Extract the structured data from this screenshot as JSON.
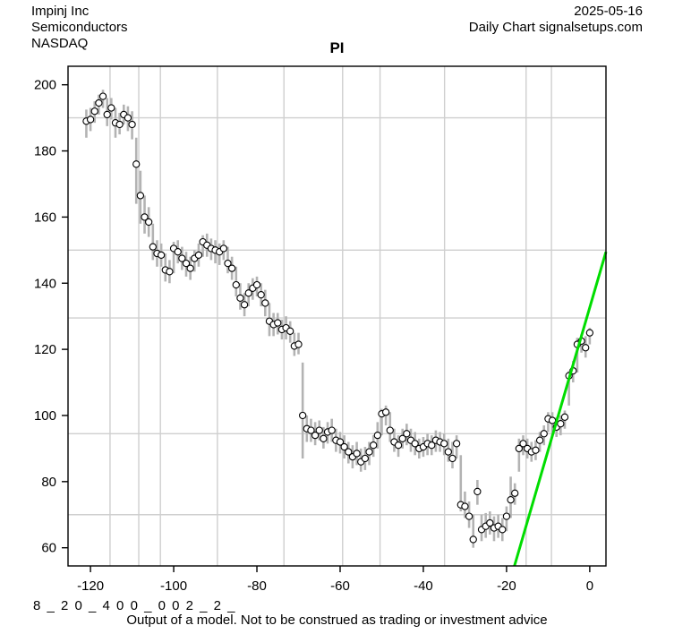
{
  "header": {
    "company": "Impinj Inc",
    "sector": "Semiconductors",
    "exchange": "NASDAQ",
    "date": "2025-05-16",
    "source": "Daily Chart signalsetups.com"
  },
  "footer": {
    "annotation": "8 _ 2 0 _ 4 0 0 _ 0 0 2 _ 2 _",
    "disclaimer": "Output of a model. Not to be construed as trading or investment advice"
  },
  "chart_data": {
    "type": "scatter",
    "title": "PI",
    "xlabel": "",
    "ylabel": "",
    "x_ticks": [
      -120,
      -100,
      -80,
      -60,
      -40,
      -20,
      0
    ],
    "y_ticks": [
      60,
      80,
      100,
      120,
      140,
      160,
      180,
      200
    ],
    "x_range": [
      -125.4,
      3.9
    ],
    "y_range": [
      54.5,
      205.6
    ],
    "grid": true,
    "h_gridlines": [
      190,
      150,
      129.5,
      94.5,
      70
    ],
    "v_gridlines": [
      -115.3,
      -108.4,
      -103.2,
      -89.5,
      -73.5,
      -59.4,
      -50.4,
      -34.9,
      -15.3,
      -9.2
    ],
    "trend_line": {
      "x1": -18.1,
      "y1": 54.5,
      "x2": 3.9,
      "y2": 149.5
    },
    "colors": {
      "bar": "#b3b3b3",
      "grid": "#cfcfcf",
      "point_fill": "#ffffff",
      "point_stroke": "#000000",
      "axis": "#000000",
      "trend": "#00dd00"
    },
    "points_format": [
      "x",
      "close",
      "low",
      "high"
    ],
    "points": [
      [
        -121,
        189,
        184,
        192.5
      ],
      [
        -120,
        189.5,
        186,
        193
      ],
      [
        -119,
        192,
        188.5,
        195
      ],
      [
        -118,
        194.5,
        191,
        197
      ],
      [
        -117,
        196.5,
        193,
        198.5
      ],
      [
        -116,
        191,
        187.5,
        196
      ],
      [
        -115,
        193,
        189.5,
        196
      ],
      [
        -114,
        188.5,
        184,
        193
      ],
      [
        -113,
        188,
        185,
        191.5
      ],
      [
        -112,
        191,
        188,
        194
      ],
      [
        -111,
        190,
        186,
        193.5
      ],
      [
        -110,
        188,
        183.5,
        192
      ],
      [
        -109,
        176,
        164,
        184
      ],
      [
        -108,
        166.5,
        158,
        174
      ],
      [
        -107,
        160,
        155,
        166.5
      ],
      [
        -106,
        158.5,
        154,
        163
      ],
      [
        -105,
        151,
        147,
        158
      ],
      [
        -104,
        149,
        145,
        153
      ],
      [
        -103,
        148.5,
        145,
        152
      ],
      [
        -102,
        144,
        140.5,
        149
      ],
      [
        -101,
        143.5,
        140,
        147
      ],
      [
        -100,
        150.5,
        143,
        152.5
      ],
      [
        -99,
        149.5,
        146,
        153
      ],
      [
        -98,
        147.5,
        144,
        151
      ],
      [
        -97,
        146,
        142,
        149.5
      ],
      [
        -96,
        144.5,
        141,
        148
      ],
      [
        -95,
        147.5,
        143.5,
        150
      ],
      [
        -94,
        148.5,
        145,
        152
      ],
      [
        -93,
        152.5,
        148,
        154.5
      ],
      [
        -92,
        151.5,
        148,
        155
      ],
      [
        -91,
        150.5,
        147,
        153.5
      ],
      [
        -90,
        150,
        146,
        153
      ],
      [
        -89,
        149.5,
        145.5,
        152
      ],
      [
        -88,
        150.5,
        147,
        153
      ],
      [
        -87,
        146,
        143,
        151
      ],
      [
        -86,
        144.5,
        141,
        148
      ],
      [
        -85,
        139.5,
        136,
        145
      ],
      [
        -84,
        135.5,
        132,
        140
      ],
      [
        -83,
        133.5,
        130,
        137
      ],
      [
        -82,
        137,
        133,
        140
      ],
      [
        -81,
        138.5,
        135,
        141.5
      ],
      [
        -80,
        139.5,
        136,
        142
      ],
      [
        -79,
        136.5,
        133,
        140
      ],
      [
        -78,
        134,
        130,
        138
      ],
      [
        -77,
        128.5,
        124,
        134
      ],
      [
        -76,
        127.5,
        124,
        131
      ],
      [
        -75,
        128,
        124.5,
        131
      ],
      [
        -74,
        126,
        123,
        129
      ],
      [
        -73,
        126.5,
        123,
        130
      ],
      [
        -72,
        125.5,
        122,
        128.5
      ],
      [
        -71,
        121,
        118,
        125
      ],
      [
        -70,
        121.5,
        118.5,
        125
      ],
      [
        -69,
        100,
        87,
        116
      ],
      [
        -68,
        96,
        92,
        100
      ],
      [
        -67,
        95.5,
        92,
        99
      ],
      [
        -66,
        94,
        91,
        98
      ],
      [
        -65,
        95.5,
        92.5,
        98.5
      ],
      [
        -64,
        93,
        90,
        96.5
      ],
      [
        -63,
        95,
        91.5,
        98
      ],
      [
        -62,
        95.5,
        92,
        99
      ],
      [
        -61,
        92.5,
        89,
        96
      ],
      [
        -60,
        92,
        88.5,
        95
      ],
      [
        -59,
        90.5,
        87,
        94
      ],
      [
        -58,
        89,
        85.5,
        92
      ],
      [
        -57,
        87.5,
        84,
        91
      ],
      [
        -56,
        88.5,
        85,
        92
      ],
      [
        -55,
        86,
        83,
        90
      ],
      [
        -54,
        87,
        83.5,
        90.5
      ],
      [
        -53,
        89,
        85,
        92
      ],
      [
        -52,
        91,
        87.5,
        94
      ],
      [
        -51,
        94,
        90,
        98
      ],
      [
        -50,
        100.5,
        94,
        102
      ],
      [
        -49,
        101,
        97,
        103
      ],
      [
        -48,
        95.5,
        92,
        101
      ],
      [
        -47,
        92,
        89,
        96
      ],
      [
        -46,
        91,
        87.5,
        94
      ],
      [
        -45,
        93,
        90,
        96
      ],
      [
        -44,
        94.5,
        91,
        97.5
      ],
      [
        -43,
        92.5,
        89,
        96
      ],
      [
        -42,
        91.5,
        88,
        95
      ],
      [
        -41,
        90,
        87,
        93
      ],
      [
        -40,
        90.5,
        87.5,
        93.5
      ],
      [
        -39,
        91.5,
        88,
        94.5
      ],
      [
        -38,
        91,
        88,
        94
      ],
      [
        -37,
        92.5,
        89,
        95.5
      ],
      [
        -36,
        92,
        89,
        95
      ],
      [
        -35,
        91.5,
        88,
        94.5
      ],
      [
        -34,
        89,
        86,
        93
      ],
      [
        -33,
        87,
        84,
        92
      ],
      [
        -32,
        91.5,
        87,
        94
      ],
      [
        -31,
        73,
        71,
        88
      ],
      [
        -30,
        72.5,
        69,
        77
      ],
      [
        -29,
        69.5,
        66,
        74
      ],
      [
        -28,
        62.5,
        60,
        70
      ],
      [
        -27,
        77,
        73,
        80.5
      ],
      [
        -26,
        65.5,
        62,
        70
      ],
      [
        -25,
        66.5,
        63,
        70.5
      ],
      [
        -24,
        67.5,
        64,
        71
      ],
      [
        -23,
        66,
        62,
        69.5
      ],
      [
        -22,
        66.5,
        63,
        70
      ],
      [
        -21,
        65.5,
        62,
        69
      ],
      [
        -20,
        69.5,
        65,
        72.5
      ],
      [
        -19,
        74.5,
        69,
        81.5
      ],
      [
        -18,
        76.5,
        73,
        79.5
      ],
      [
        -17,
        90,
        83,
        93
      ],
      [
        -16,
        91.5,
        88,
        94
      ],
      [
        -15,
        90,
        87,
        93
      ],
      [
        -14,
        89,
        86,
        92
      ],
      [
        -13,
        89.5,
        86.5,
        92.5
      ],
      [
        -12,
        92.5,
        89,
        95
      ],
      [
        -11,
        94.5,
        91,
        97
      ],
      [
        -10,
        99,
        95,
        101
      ],
      [
        -9,
        98.5,
        95,
        101
      ],
      [
        -8,
        96.5,
        93.5,
        99.5
      ],
      [
        -7,
        97.5,
        94,
        100
      ],
      [
        -6,
        99.5,
        96,
        101.5
      ],
      [
        -5,
        112,
        103,
        113.5
      ],
      [
        -4,
        113.5,
        110,
        116.5
      ],
      [
        -3,
        121.5,
        113,
        123.5
      ],
      [
        -2,
        122.5,
        119,
        124.5
      ],
      [
        -1,
        120.5,
        117.5,
        124
      ],
      [
        0,
        125,
        121.5,
        126.5
      ]
    ]
  }
}
